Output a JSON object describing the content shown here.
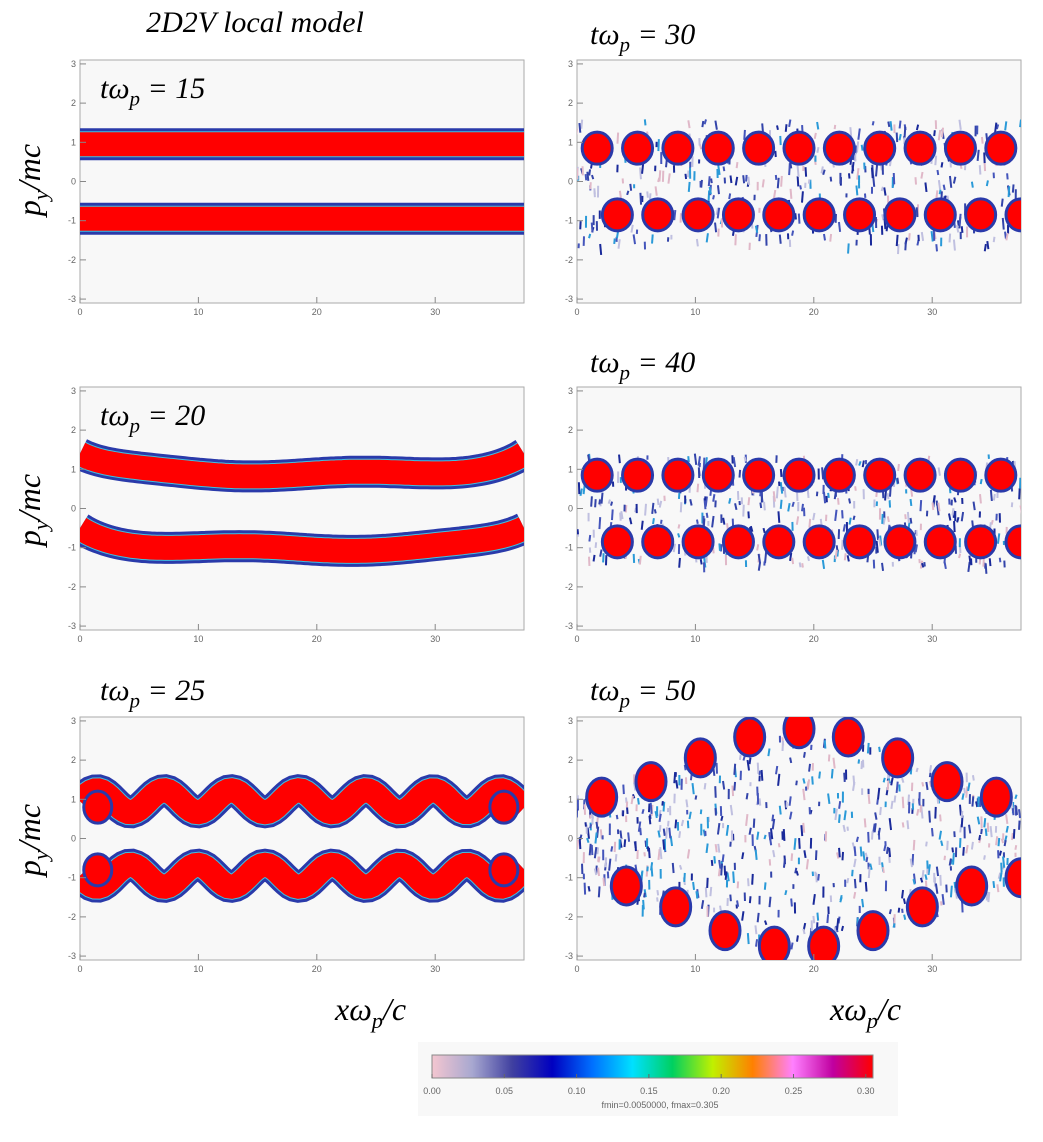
{
  "title": "2D2V local model",
  "x_label": [
    "xω",
    "p",
    "/c"
  ],
  "y_label": [
    "p",
    "y",
    "/mc"
  ],
  "chart_data": [
    {
      "type": "heatmap",
      "annotation": [
        "tω",
        "p",
        " = 15"
      ],
      "xlim": [
        0,
        37.5
      ],
      "ylim": [
        -3.1,
        3.1
      ],
      "xticks": [
        0,
        10,
        20,
        30
      ],
      "yticks": [
        -3,
        -2,
        -1,
        0,
        1,
        2,
        3
      ]
    },
    {
      "type": "heatmap",
      "annotation": [
        "tω",
        "p",
        " = 30"
      ],
      "xlim": [
        0,
        37.5
      ],
      "ylim": [
        -3.1,
        3.1
      ],
      "xticks": [
        0,
        10,
        20,
        30
      ],
      "yticks": [
        -3,
        -2,
        -1,
        0,
        1,
        2,
        3
      ]
    },
    {
      "type": "heatmap",
      "annotation": [
        "tω",
        "p",
        " = 20"
      ],
      "xlim": [
        0,
        37.5
      ],
      "ylim": [
        -3.1,
        3.1
      ],
      "xticks": [
        0,
        10,
        20,
        30
      ],
      "yticks": [
        -3,
        -2,
        -1,
        0,
        1,
        2,
        3
      ]
    },
    {
      "type": "heatmap",
      "annotation": [
        "tω",
        "p",
        " = 40"
      ],
      "xlim": [
        0,
        37.5
      ],
      "ylim": [
        -3.1,
        3.1
      ],
      "xticks": [
        0,
        10,
        20,
        30
      ],
      "yticks": [
        -3,
        -2,
        -1,
        0,
        1,
        2,
        3
      ]
    },
    {
      "type": "heatmap",
      "annotation": [
        "tω",
        "p",
        " = 25"
      ],
      "xlim": [
        0,
        37.5
      ],
      "ylim": [
        -3.1,
        3.1
      ],
      "xticks": [
        0,
        10,
        20,
        30
      ],
      "yticks": [
        -3,
        -2,
        -1,
        0,
        1,
        2,
        3
      ]
    },
    {
      "type": "heatmap",
      "annotation": [
        "tω",
        "p",
        " = 50"
      ],
      "xlim": [
        0,
        37.5
      ],
      "ylim": [
        -3.1,
        3.1
      ],
      "xticks": [
        0,
        10,
        20,
        30
      ],
      "yticks": [
        -3,
        -2,
        -1,
        0,
        1,
        2,
        3
      ]
    }
  ],
  "colorbar": {
    "clim": [
      0,
      0.305
    ],
    "ticks": [
      {
        "value": 0,
        "label": "0.00"
      },
      {
        "value": 0.05,
        "label": "0.05"
      },
      {
        "value": 0.1,
        "label": "0.10"
      },
      {
        "value": 0.15,
        "label": "0.15"
      },
      {
        "value": 0.2,
        "label": "0.20"
      },
      {
        "value": 0.25,
        "label": "0.25"
      },
      {
        "value": 0.3,
        "label": "0.30"
      }
    ],
    "colors": [
      "#f4c6d0",
      "#a8a8d0",
      "#4040a0",
      "#0000c0",
      "#0070ff",
      "#00e0ff",
      "#00d060",
      "#c0f000",
      "#ff8000",
      "#ff80ff",
      "#c000a0",
      "#ff0000"
    ],
    "note": "fmin=0.0050000,  fmax=0.305"
  }
}
